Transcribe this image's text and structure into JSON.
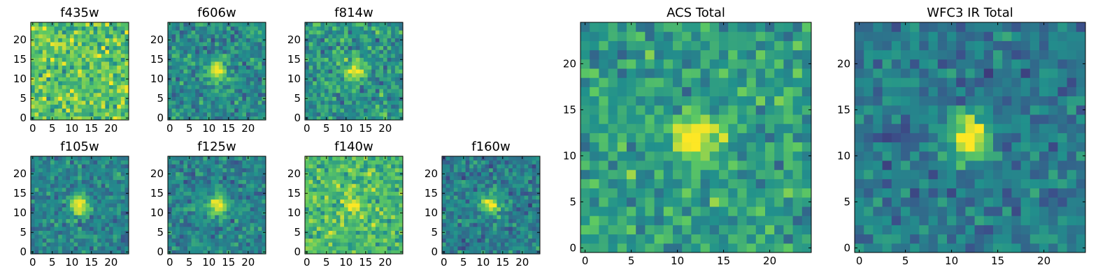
{
  "figure": {
    "background": "#ffffff"
  },
  "colormap": {
    "name": "viridis",
    "stops": [
      "#440154",
      "#3b528b",
      "#21918c",
      "#5ec962",
      "#fde725"
    ]
  },
  "chart_data": [
    {
      "type": "heatmap",
      "title": "f435w",
      "grid_size": 25,
      "xlim": [
        0,
        24
      ],
      "ylim": [
        0,
        24
      ],
      "xticks": [
        0,
        5,
        10,
        15,
        20
      ],
      "yticks": [
        0,
        5,
        10,
        15,
        20
      ],
      "grid": false,
      "source_peak": null,
      "peak_intensity": 0.0,
      "background_level": 0.72,
      "noise_level": 0.18
    },
    {
      "type": "heatmap",
      "title": "f606w",
      "grid_size": 25,
      "xlim": [
        0,
        24
      ],
      "ylim": [
        0,
        24
      ],
      "xticks": [
        0,
        5,
        10,
        15,
        20
      ],
      "yticks": [
        0,
        5,
        10,
        15,
        20
      ],
      "grid": false,
      "source_peak": [
        12,
        12
      ],
      "peak_intensity": 0.55,
      "background_level": 0.48,
      "noise_level": 0.14
    },
    {
      "type": "heatmap",
      "title": "f814w",
      "grid_size": 25,
      "xlim": [
        0,
        24
      ],
      "ylim": [
        0,
        24
      ],
      "xticks": [
        0,
        5,
        10,
        15,
        20
      ],
      "yticks": [
        0,
        5,
        10,
        15,
        20
      ],
      "grid": false,
      "source_peak": [
        12,
        12
      ],
      "peak_intensity": 0.5,
      "background_level": 0.52,
      "noise_level": 0.16
    },
    {
      "type": "heatmap",
      "title": "f105w",
      "grid_size": 25,
      "xlim": [
        0,
        24
      ],
      "ylim": [
        0,
        24
      ],
      "xticks": [
        0,
        5,
        10,
        15,
        20
      ],
      "yticks": [
        0,
        5,
        10,
        15,
        20
      ],
      "grid": false,
      "source_peak": [
        12,
        12
      ],
      "peak_intensity": 0.6,
      "background_level": 0.45,
      "noise_level": 0.12
    },
    {
      "type": "heatmap",
      "title": "f125w",
      "grid_size": 25,
      "xlim": [
        0,
        24
      ],
      "ylim": [
        0,
        24
      ],
      "xticks": [
        0,
        5,
        10,
        15,
        20
      ],
      "yticks": [
        0,
        5,
        10,
        15,
        20
      ],
      "grid": false,
      "source_peak": [
        12,
        12
      ],
      "peak_intensity": 0.6,
      "background_level": 0.45,
      "noise_level": 0.12
    },
    {
      "type": "heatmap",
      "title": "f140w",
      "grid_size": 25,
      "xlim": [
        0,
        24
      ],
      "ylim": [
        0,
        24
      ],
      "xticks": [
        0,
        5,
        10,
        15,
        20
      ],
      "yticks": [
        0,
        5,
        10,
        15,
        20
      ],
      "grid": false,
      "source_peak": [
        12,
        12
      ],
      "peak_intensity": 0.3,
      "background_level": 0.68,
      "noise_level": 0.14
    },
    {
      "type": "heatmap",
      "title": "f160w",
      "grid_size": 25,
      "xlim": [
        0,
        24
      ],
      "ylim": [
        0,
        24
      ],
      "xticks": [
        0,
        5,
        10,
        15,
        20
      ],
      "yticks": [
        0,
        5,
        10,
        15,
        20
      ],
      "grid": false,
      "source_peak": [
        12,
        12
      ],
      "peak_intensity": 0.6,
      "background_level": 0.42,
      "noise_level": 0.13
    },
    {
      "type": "heatmap",
      "title": "ACS Total",
      "grid_size": 25,
      "xlim": [
        0,
        24
      ],
      "ylim": [
        0,
        24
      ],
      "xticks": [
        0,
        5,
        10,
        15,
        20
      ],
      "yticks": [
        0,
        5,
        10,
        15,
        20
      ],
      "grid": false,
      "source_peak": [
        12,
        12
      ],
      "peak_intensity": 0.5,
      "background_level": 0.55,
      "noise_level": 0.15
    },
    {
      "type": "heatmap",
      "title": "WFC3 IR Total",
      "grid_size": 25,
      "xlim": [
        0,
        24
      ],
      "ylim": [
        0,
        24
      ],
      "xticks": [
        0,
        5,
        10,
        15,
        20
      ],
      "yticks": [
        0,
        5,
        10,
        15,
        20
      ],
      "grid": false,
      "source_peak": [
        12,
        12
      ],
      "peak_intensity": 0.65,
      "background_level": 0.4,
      "noise_level": 0.12
    }
  ]
}
